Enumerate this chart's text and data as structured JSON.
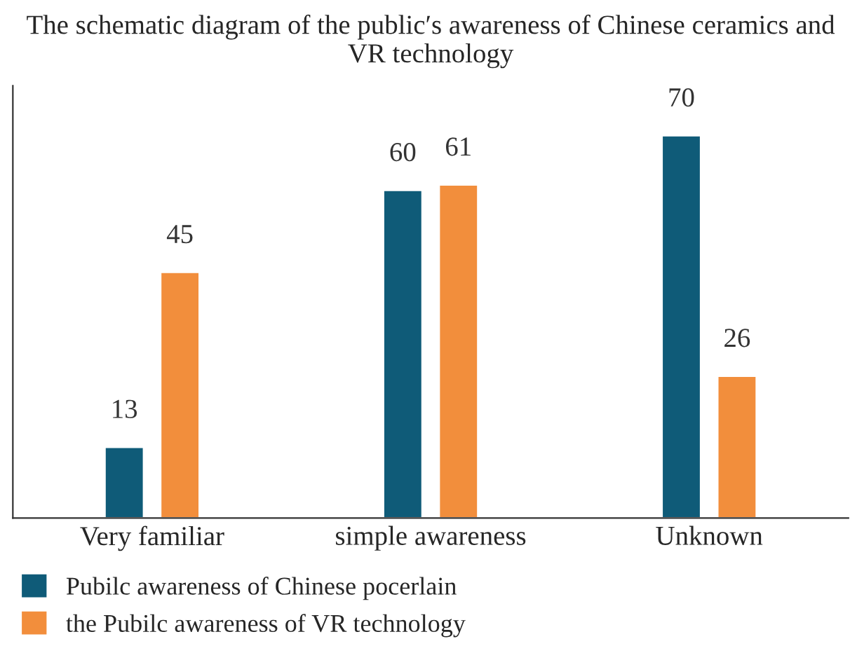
{
  "chart_data": {
    "type": "bar",
    "title": "The schematic diagram of the public′s awareness of Chinese ceramics and VR technology",
    "categories": [
      "Very familiar",
      "simple awareness",
      "Unknown"
    ],
    "series": [
      {
        "name": "Pubilc awareness of Chinese pocerlain",
        "color": "#0f5b78",
        "values": [
          13,
          60,
          70
        ]
      },
      {
        "name": "the Pubilc awareness of VR technology",
        "color": "#f28e3c",
        "values": [
          45,
          61,
          26
        ]
      }
    ],
    "data_labels": true,
    "legend": "bottom",
    "grid": false,
    "tick_labels": "x"
  }
}
